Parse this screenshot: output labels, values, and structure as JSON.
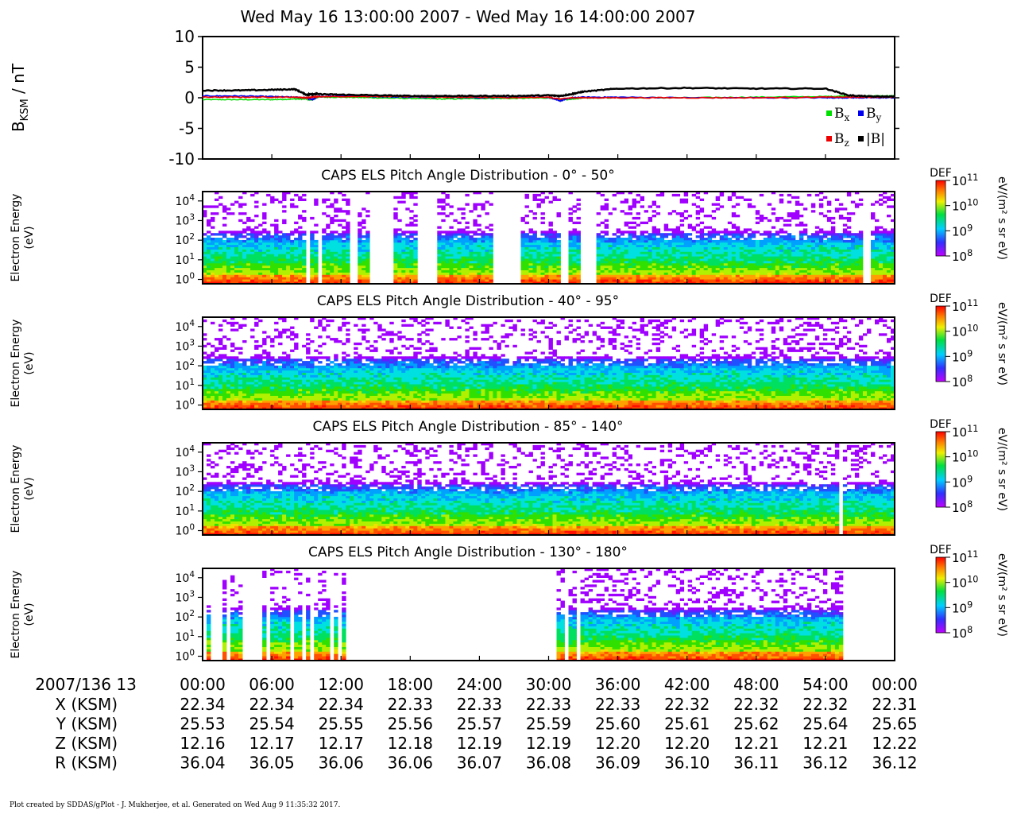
{
  "title": "Wed May 16 13:00:00 2007 - Wed May 16 14:00:00 2007",
  "footer": "Plot created by SDDAS/gPlot - J. Mukherjee, et al.  Generated on Wed Aug 9 11:35:32 2017.",
  "colors": {
    "bx": "#00e000",
    "by": "#0000ee",
    "bz": "#ee0000",
    "bmag": "#000000"
  },
  "chart_data": [
    {
      "type": "line",
      "ylabel_main": "B",
      "ylabel_sub": "KSM",
      "ylabel_unit": "/ nT",
      "ylim": [
        -10,
        10
      ],
      "yticks": [
        "10",
        "5",
        "0",
        "-5",
        "-10"
      ],
      "yticks_values": [
        10,
        5,
        0,
        -5,
        -10
      ],
      "x_minutes": [
        0,
        3,
        6,
        8,
        9,
        9.5,
        10,
        12,
        15,
        18,
        21,
        24,
        27,
        30,
        31,
        32,
        33,
        36,
        42,
        48,
        54,
        56,
        58,
        60
      ],
      "series": [
        {
          "name": "Bx",
          "values": [
            -0.3,
            -0.3,
            -0.3,
            -0.2,
            -0.2,
            -0.3,
            0.1,
            0.1,
            0.0,
            -0.1,
            -0.2,
            -0.1,
            -0.1,
            0.0,
            -0.4,
            -0.2,
            0.0,
            0.0,
            0.0,
            0.1,
            0.2,
            0.3,
            0.3,
            0.3
          ]
        },
        {
          "name": "By",
          "values": [
            0.3,
            0.3,
            0.2,
            0.1,
            0.0,
            -0.3,
            0.2,
            0.3,
            0.2,
            0.1,
            0.1,
            0.0,
            0.1,
            0.1,
            -0.5,
            0.0,
            0.1,
            0.1,
            0.0,
            0.0,
            0.0,
            0.0,
            0.0,
            0.0
          ]
        },
        {
          "name": "Bz",
          "values": [
            0.1,
            0.1,
            0.1,
            0.1,
            0.0,
            0.1,
            0.2,
            0.2,
            0.2,
            0.2,
            0.1,
            0.1,
            0.0,
            0.1,
            -0.2,
            0.0,
            0.0,
            0.0,
            0.0,
            0.0,
            0.1,
            0.1,
            0.1,
            0.1
          ]
        },
        {
          "name": "|B|",
          "values": [
            1.2,
            1.2,
            1.3,
            1.4,
            0.5,
            0.6,
            0.6,
            0.5,
            0.4,
            0.3,
            0.3,
            0.3,
            0.3,
            0.4,
            0.3,
            0.6,
            1.0,
            1.5,
            1.6,
            1.5,
            1.5,
            0.4,
            0.2,
            0.2
          ]
        }
      ],
      "legend": [
        {
          "key": "bx",
          "main": "B",
          "sub": "x"
        },
        {
          "key": "by",
          "main": "B",
          "sub": "y"
        },
        {
          "key": "bz",
          "main": "B",
          "sub": "z"
        },
        {
          "key": "bmag",
          "main": "|B|",
          "sub": ""
        }
      ]
    },
    {
      "type": "heatmap",
      "title": "CAPS ELS Pitch Angle Distribution - 0° - 50°",
      "ylabel": [
        "Electron Energy",
        "(eV)"
      ],
      "yscale": "log",
      "yticks": [
        {
          "base": "10",
          "exp": "4"
        },
        {
          "base": "10",
          "exp": "3"
        },
        {
          "base": "10",
          "exp": "2"
        },
        {
          "base": "10",
          "exp": "1"
        },
        {
          "base": "10",
          "exp": "0"
        }
      ],
      "ylim": [
        0.6,
        30000
      ],
      "gaps_minutes": [
        [
          9.0,
          9.4
        ],
        [
          9.9,
          10.2
        ],
        [
          12.7,
          13.3
        ],
        [
          14.6,
          16.5
        ],
        [
          18.7,
          20.4
        ],
        [
          25.1,
          27.5
        ],
        [
          31.0,
          31.8
        ],
        [
          32.9,
          34.1
        ],
        [
          57.1,
          58.0
        ]
      ],
      "colorbar": {
        "label": "DEF",
        "unit": "eV/(m² s sr eV)",
        "ticks": [
          {
            "base": "10",
            "exp": "11"
          },
          {
            "base": "10",
            "exp": "10"
          },
          {
            "base": "10",
            "exp": "9"
          },
          {
            "base": "10",
            "exp": "8"
          }
        ]
      }
    },
    {
      "type": "heatmap",
      "title": "CAPS ELS Pitch Angle Distribution - 40° - 95°",
      "ylabel": [
        "Electron Energy",
        "(eV)"
      ],
      "yscale": "log",
      "yticks": [
        {
          "base": "10",
          "exp": "4"
        },
        {
          "base": "10",
          "exp": "3"
        },
        {
          "base": "10",
          "exp": "2"
        },
        {
          "base": "10",
          "exp": "1"
        },
        {
          "base": "10",
          "exp": "0"
        }
      ],
      "ylim": [
        0.6,
        30000
      ],
      "gaps_minutes": [],
      "colorbar": {
        "label": "DEF",
        "unit": "eV/(m² s sr eV)",
        "ticks": [
          {
            "base": "10",
            "exp": "11"
          },
          {
            "base": "10",
            "exp": "10"
          },
          {
            "base": "10",
            "exp": "9"
          },
          {
            "base": "10",
            "exp": "8"
          }
        ]
      }
    },
    {
      "type": "heatmap",
      "title": "CAPS ELS Pitch Angle Distribution - 85° - 140°",
      "ylabel": [
        "Electron Energy",
        "(eV)"
      ],
      "yscale": "log",
      "yticks": [
        {
          "base": "10",
          "exp": "4"
        },
        {
          "base": "10",
          "exp": "3"
        },
        {
          "base": "10",
          "exp": "2"
        },
        {
          "base": "10",
          "exp": "1"
        },
        {
          "base": "10",
          "exp": "0"
        }
      ],
      "ylim": [
        0.6,
        30000
      ],
      "gaps_minutes": [
        [
          12.6,
          12.7
        ],
        [
          55.3,
          55.4
        ],
        [
          58.0,
          58.1
        ]
      ],
      "colorbar": {
        "label": "DEF",
        "unit": "eV/(m² s sr eV)",
        "ticks": [
          {
            "base": "10",
            "exp": "11"
          },
          {
            "base": "10",
            "exp": "10"
          },
          {
            "base": "10",
            "exp": "9"
          },
          {
            "base": "10",
            "exp": "8"
          }
        ]
      }
    },
    {
      "type": "heatmap",
      "title": "CAPS ELS Pitch Angle Distribution - 130° - 180°",
      "ylabel": [
        "Electron Energy",
        "(eV)"
      ],
      "yscale": "log",
      "yticks": [
        {
          "base": "10",
          "exp": "4"
        },
        {
          "base": "10",
          "exp": "3"
        },
        {
          "base": "10",
          "exp": "2"
        },
        {
          "base": "10",
          "exp": "1"
        },
        {
          "base": "10",
          "exp": "0"
        }
      ],
      "ylim": [
        0.6,
        30000
      ],
      "data_minutes": [
        [
          0.3,
          0.6
        ],
        [
          1.6,
          1.9
        ],
        [
          2.5,
          3.3
        ],
        [
          5.3,
          5.6
        ],
        [
          5.8,
          7.5
        ],
        [
          7.9,
          8.5
        ],
        [
          8.9,
          9.2
        ],
        [
          9.8,
          10.2
        ],
        [
          10.5,
          11.0
        ],
        [
          11.3,
          11.6
        ],
        [
          12.0,
          12.3
        ],
        [
          19.0,
          19.1
        ],
        [
          26.5,
          26.6
        ],
        [
          30.6,
          31.4
        ],
        [
          31.6,
          32.5
        ],
        [
          32.8,
          35.0
        ],
        [
          35.0,
          54.0
        ],
        [
          54.2,
          54.8
        ],
        [
          55.0,
          55.5
        ]
      ],
      "colorbar": {
        "label": "DEF",
        "unit": "eV/(m² s sr eV)",
        "ticks": [
          {
            "base": "10",
            "exp": "11"
          },
          {
            "base": "10",
            "exp": "10"
          },
          {
            "base": "10",
            "exp": "9"
          },
          {
            "base": "10",
            "exp": "8"
          }
        ]
      }
    }
  ],
  "x_axis": {
    "date_label": "2007/136 13",
    "tick_minutes": [
      0,
      6,
      12,
      18,
      24,
      30,
      36,
      42,
      48,
      54,
      60
    ],
    "tick_labels": [
      "00:00",
      "06:00",
      "12:00",
      "18:00",
      "24:00",
      "30:00",
      "36:00",
      "42:00",
      "48:00",
      "54:00",
      "00:00"
    ],
    "ephemeris": [
      {
        "label": "X (KSM)",
        "values": [
          "22.34",
          "22.34",
          "22.34",
          "22.33",
          "22.33",
          "22.33",
          "22.33",
          "22.32",
          "22.32",
          "22.32",
          "22.31"
        ]
      },
      {
        "label": "Y (KSM)",
        "values": [
          "25.53",
          "25.54",
          "25.55",
          "25.56",
          "25.57",
          "25.59",
          "25.60",
          "25.61",
          "25.62",
          "25.64",
          "25.65"
        ]
      },
      {
        "label": "Z (KSM)",
        "values": [
          "12.16",
          "12.17",
          "12.17",
          "12.18",
          "12.19",
          "12.19",
          "12.20",
          "12.20",
          "12.21",
          "12.21",
          "12.22"
        ]
      },
      {
        "label": "R (KSM)",
        "values": [
          "36.04",
          "36.05",
          "36.06",
          "36.06",
          "36.07",
          "36.08",
          "36.09",
          "36.10",
          "36.11",
          "36.12",
          "36.12"
        ]
      }
    ]
  }
}
